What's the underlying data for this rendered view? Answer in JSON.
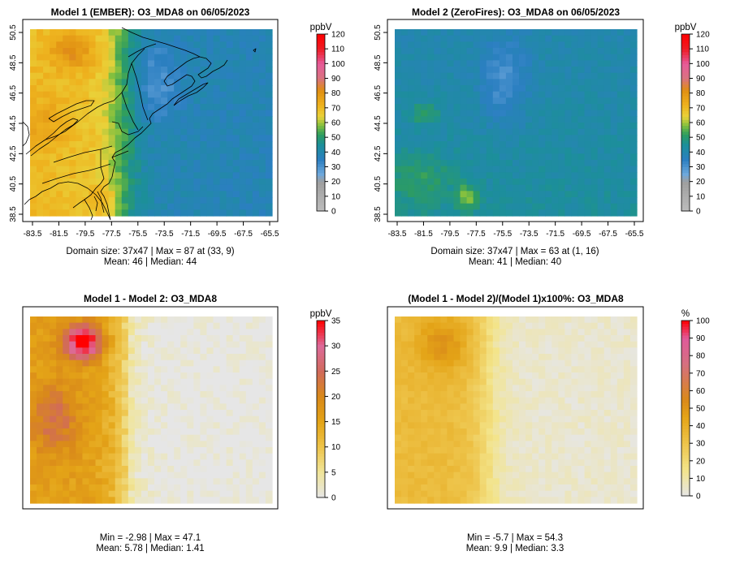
{
  "panels": [
    {
      "id": "p1",
      "title": "Model 1 (EMBER): O3_MDA8 on 06/05/2023",
      "unit": "ppbV",
      "scale": "conc",
      "has_axes": true,
      "x_ticks": [
        "-83.5",
        "-81.5",
        "-79.5",
        "-77.5",
        "-75.5",
        "-73.5",
        "-71.5",
        "-69.5",
        "-67.5",
        "-65.5"
      ],
      "y_ticks": [
        "38.5",
        "40.5",
        "42.5",
        "44.5",
        "46.5",
        "48.5",
        "50.5"
      ],
      "colorbar_ticks": [
        "0",
        "10",
        "20",
        "30",
        "40",
        "50",
        "60",
        "70",
        "80",
        "90",
        "100",
        "110",
        "120"
      ],
      "stats_line1": "Domain size: 37x47 | Max = 87 at (33, 9)",
      "stats_line2": "Mean: 46 |  Median: 44"
    },
    {
      "id": "p2",
      "title": "Model 2 (ZeroFires): O3_MDA8 on 06/05/2023",
      "unit": "ppbV",
      "scale": "conc",
      "has_axes": true,
      "x_ticks": [
        "-83.5",
        "-81.5",
        "-79.5",
        "-77.5",
        "-75.5",
        "-73.5",
        "-71.5",
        "-69.5",
        "-67.5",
        "-65.5"
      ],
      "y_ticks": [
        "38.5",
        "40.5",
        "42.5",
        "44.5",
        "46.5",
        "48.5",
        "50.5"
      ],
      "colorbar_ticks": [
        "0",
        "10",
        "20",
        "30",
        "40",
        "50",
        "60",
        "70",
        "80",
        "90",
        "100",
        "110",
        "120"
      ],
      "stats_line1": "Domain size: 37x47 | Max = 63 at (1, 16)",
      "stats_line2": "Mean: 41 |  Median: 40"
    },
    {
      "id": "p3",
      "title": "Model 1 - Model 2: O3_MDA8",
      "unit": "ppbV",
      "scale": "diff",
      "has_axes": false,
      "colorbar_ticks": [
        "0",
        "5",
        "10",
        "15",
        "20",
        "25",
        "30",
        "35"
      ],
      "stats_line1": "Min = -2.98 | Max = 47.1",
      "stats_line2": "Mean: 5.78 |  Median: 1.41"
    },
    {
      "id": "p4",
      "title": "(Model 1 - Model 2)/(Model 1)x100%: O3_MDA8",
      "unit": "%",
      "scale": "pct",
      "has_axes": false,
      "colorbar_ticks": [
        "0",
        "10",
        "20",
        "30",
        "40",
        "50",
        "60",
        "70",
        "80",
        "90",
        "100"
      ],
      "stats_line1": "Min = -5.7 | Max = 54.3",
      "stats_line2": "Mean: 9.9 |  Median: 3.3"
    }
  ],
  "scales": {
    "conc": {
      "min": 0,
      "max": 120,
      "stops": [
        [
          0,
          "#bdbdbd"
        ],
        [
          20,
          "#9e9e9e"
        ],
        [
          25,
          "#6fa8dc"
        ],
        [
          35,
          "#2b7fc1"
        ],
        [
          45,
          "#1c8f9a"
        ],
        [
          52,
          "#2e9d5e"
        ],
        [
          58,
          "#7fbf3f"
        ],
        [
          64,
          "#e9d23a"
        ],
        [
          72,
          "#eeb21e"
        ],
        [
          82,
          "#e08e12"
        ],
        [
          90,
          "#d9737f"
        ],
        [
          100,
          "#e65a9a"
        ],
        [
          110,
          "#ee1c24"
        ],
        [
          120,
          "#ff0000"
        ]
      ]
    },
    "diff": {
      "min": 0,
      "max": 35,
      "stops": [
        [
          0,
          "#e6e6e6"
        ],
        [
          5,
          "#f0e59a"
        ],
        [
          10,
          "#eec44a"
        ],
        [
          15,
          "#e4a417"
        ],
        [
          20,
          "#d9891a"
        ],
        [
          25,
          "#d16a5c"
        ],
        [
          30,
          "#dd6a9a"
        ],
        [
          35,
          "#ff0000"
        ]
      ]
    },
    "pct": {
      "min": 0,
      "max": 100,
      "stops": [
        [
          0,
          "#e6e6e6"
        ],
        [
          15,
          "#f3e48a"
        ],
        [
          30,
          "#eec44a"
        ],
        [
          45,
          "#e4a417"
        ],
        [
          55,
          "#d9891a"
        ],
        [
          75,
          "#d5707f"
        ],
        [
          90,
          "#e05a9a"
        ],
        [
          100,
          "#ff0000"
        ]
      ]
    }
  }
}
